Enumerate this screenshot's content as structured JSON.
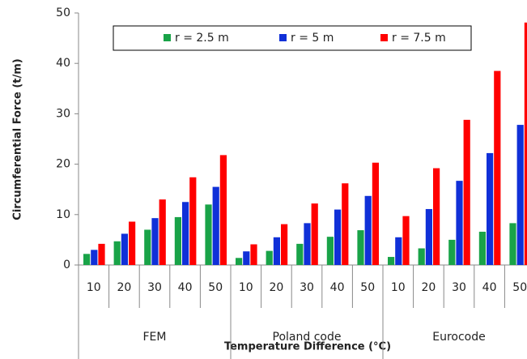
{
  "chart_data": {
    "type": "bar",
    "y_label": "Circumferential Force (t/m)",
    "x_label": "Temperature Difference (°C)",
    "groups": [
      "FEM",
      "Poland code",
      "Eurocode"
    ],
    "categories": [
      "10",
      "20",
      "30",
      "40",
      "50",
      "10",
      "20",
      "30",
      "40",
      "50",
      "10",
      "20",
      "30",
      "40",
      "50"
    ],
    "series": [
      {
        "name": "r = 2.5 m",
        "color": "#19a348",
        "values": [
          2.2,
          4.7,
          7.0,
          9.5,
          12.0,
          1.4,
          2.8,
          4.2,
          5.6,
          6.9,
          1.6,
          3.3,
          5.0,
          6.6,
          8.3
        ]
      },
      {
        "name": "r = 5 m",
        "color": "#1030d8",
        "values": [
          3.0,
          6.2,
          9.3,
          12.5,
          15.5,
          2.7,
          5.5,
          8.3,
          11.0,
          13.7,
          5.5,
          11.1,
          16.7,
          22.2,
          27.8
        ]
      },
      {
        "name": "r = 7.5 m",
        "color": "#ff0000",
        "values": [
          4.2,
          8.6,
          13.0,
          17.4,
          21.8,
          4.1,
          8.1,
          12.2,
          16.2,
          20.3,
          9.7,
          19.2,
          28.8,
          38.5,
          48.1
        ]
      }
    ],
    "ylim": [
      0,
      50
    ],
    "yticks": [
      0,
      10,
      20,
      30,
      40,
      50
    ],
    "grid": false
  }
}
